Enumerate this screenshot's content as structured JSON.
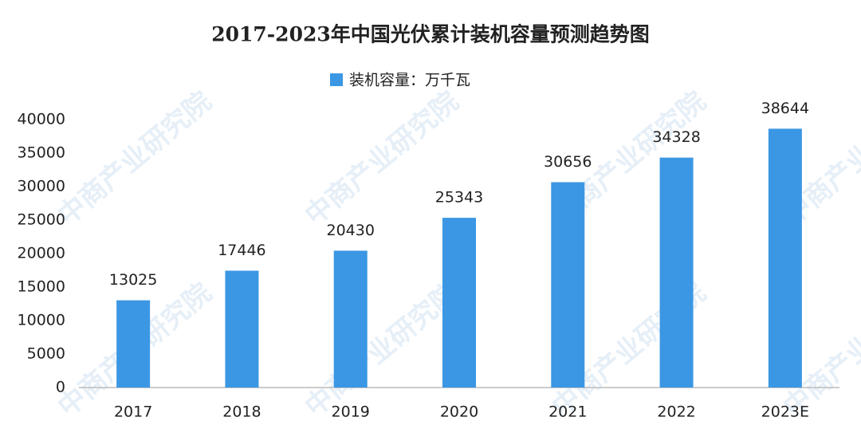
{
  "chart_data": {
    "type": "bar",
    "title": "2017-2023年中国光伏累计装机容量预测趋势图",
    "watermark": "中商产业研究院",
    "categories": [
      "2017",
      "2018",
      "2019",
      "2020",
      "2021",
      "2022",
      "2023E"
    ],
    "series": [
      {
        "name": "装机容量：万千瓦",
        "color": "#3b97e3",
        "values": [
          13025,
          17446,
          20430,
          25343,
          30656,
          34328,
          38644
        ]
      }
    ],
    "ylim": [
      0,
      40000
    ],
    "yticks": [
      0,
      5000,
      10000,
      15000,
      20000,
      25000,
      30000,
      35000,
      40000
    ],
    "grid": false,
    "legend": "top"
  }
}
